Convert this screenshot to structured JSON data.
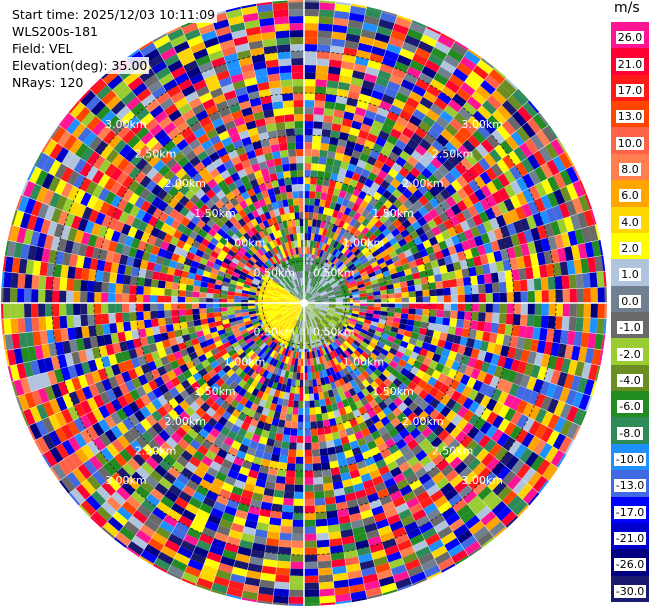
{
  "info": {
    "start_time": "Start time: 2025/12/03 10:11:09",
    "station": "WLS200s-181",
    "field": "Field: VEL",
    "elevation": "Elevation(deg): 35.00",
    "nrays": "NRays: 120"
  },
  "colorbar": {
    "unit": "m/s",
    "levels": [
      "26.0",
      "21.0",
      "17.0",
      "13.0",
      "10.0",
      "8.0",
      "6.0",
      "4.0",
      "2.0",
      "1.0",
      "0.0",
      "-1.0",
      "-2.0",
      "-4.0",
      "-6.0",
      "-8.0",
      "-10.0",
      "-13.0",
      "-17.0",
      "-21.0",
      "-26.0",
      "-30.0"
    ],
    "colors": [
      "#ff1493",
      "#ff0033",
      "#ff1a1a",
      "#ff4500",
      "#ff6347",
      "#ff7f50",
      "#ffa500",
      "#ffd700",
      "#ffff00",
      "#b0c4de",
      "#708090",
      "#696969",
      "#9acd32",
      "#6b8e23",
      "#228b22",
      "#2e8b57",
      "#1e90ff",
      "#4169e1",
      "#0000ff",
      "#0000cd",
      "#000080",
      "#191970"
    ]
  },
  "chart_data": {
    "type": "heatmap",
    "projection": "polar PPI",
    "field": "VEL",
    "nrays": 120,
    "range_rings_km": [
      {
        "label": "0.50km"
      },
      {
        "label": "1.00km"
      },
      {
        "label": "1.50km"
      },
      {
        "label": "2.00km"
      },
      {
        "label": "2.50km"
      },
      {
        "label": "3.00km"
      }
    ]
  }
}
